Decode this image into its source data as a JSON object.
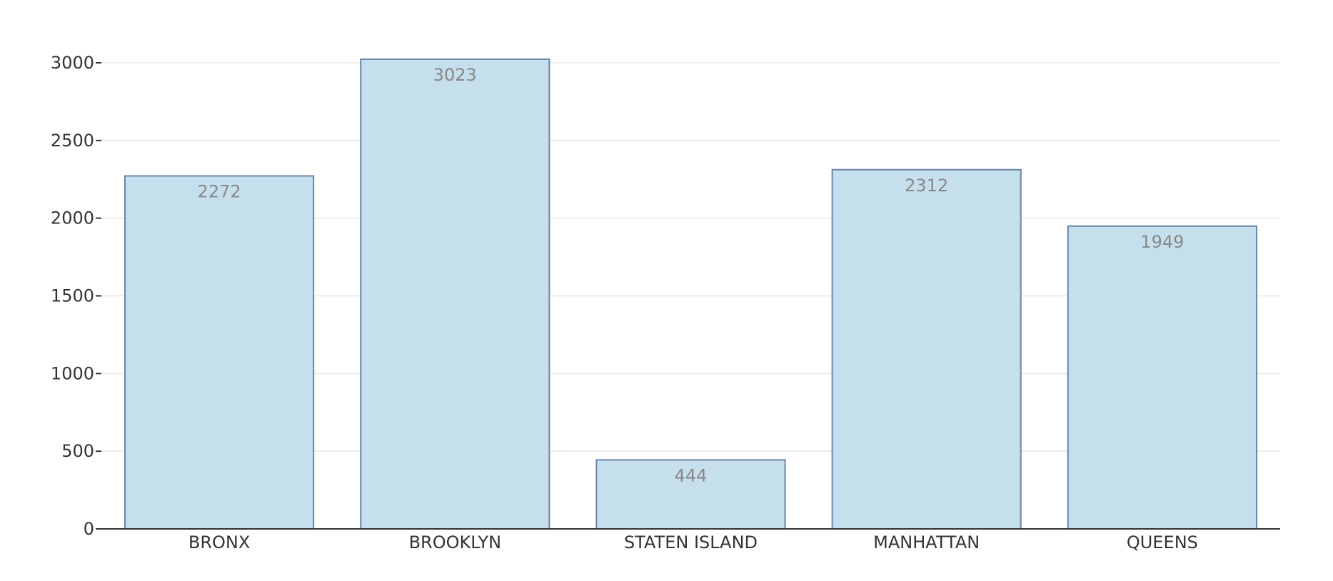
{
  "chart_data": {
    "type": "bar",
    "categories": [
      "BRONX",
      "BROOKLYN",
      "STATEN ISLAND",
      "MANHATTAN",
      "QUEENS"
    ],
    "values": [
      2272,
      3023,
      444,
      2312,
      1949
    ],
    "title": "",
    "xlabel": "",
    "ylabel": "",
    "ylim": [
      0,
      3000
    ],
    "yticks": [
      0,
      500,
      1000,
      1500,
      2000,
      2500,
      3000
    ],
    "grid": true,
    "legend": "none",
    "colors": {
      "bar_fill": "#c6dfec",
      "bar_stroke": "#6b85a6",
      "data_label": "#888888",
      "axis": "#333333",
      "grid": "#e8e8e8"
    }
  }
}
